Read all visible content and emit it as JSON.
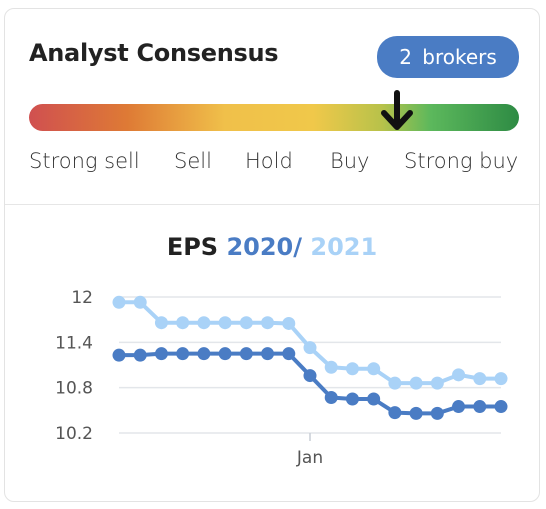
{
  "card": {
    "title": "Analyst Consensus",
    "brokers_label": "2 brokers",
    "consensus_position": 0.75,
    "scale_labels": [
      "Strong sell",
      "Sell",
      "Hold",
      "Buy",
      "Strong buy"
    ]
  },
  "chart_title": {
    "prefix": "EPS",
    "year_a": "2020",
    "separator": "/",
    "year_b": "2021"
  },
  "colors": {
    "series_2020": "#4a7cc4",
    "series_2021": "#a9d2f7",
    "badge": "#4a7cc4"
  },
  "chart_data": {
    "type": "line",
    "title": "EPS 2020 / 2021",
    "x_tick_labels": [
      {
        "label": "Jan",
        "index": 9
      }
    ],
    "yticks": [
      12,
      11.4,
      10.8,
      10.2
    ],
    "ylim": [
      10.2,
      12
    ],
    "grid": true,
    "series": [
      {
        "name": "2020",
        "color": "#4a7cc4",
        "values": [
          11.23,
          11.23,
          11.25,
          11.25,
          11.25,
          11.25,
          11.25,
          11.25,
          11.25,
          10.96,
          10.67,
          10.65,
          10.65,
          10.47,
          10.46,
          10.46,
          10.55,
          10.55,
          10.55
        ]
      },
      {
        "name": "2021",
        "color": "#a9d2f7",
        "values": [
          11.93,
          11.93,
          11.66,
          11.66,
          11.66,
          11.66,
          11.66,
          11.66,
          11.65,
          11.33,
          11.07,
          11.05,
          11.05,
          10.86,
          10.86,
          10.86,
          10.97,
          10.92,
          10.92
        ]
      }
    ]
  }
}
